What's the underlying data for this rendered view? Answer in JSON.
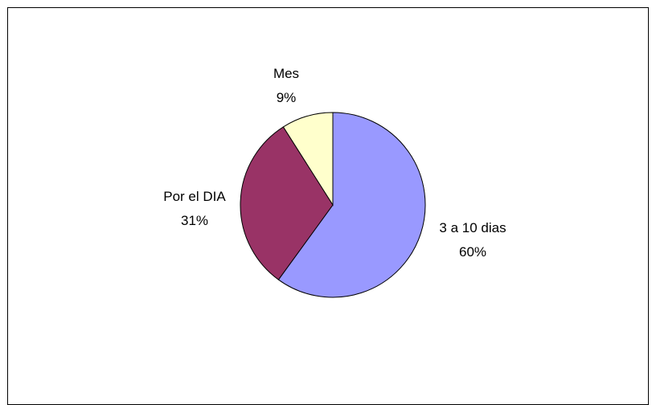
{
  "chart_data": {
    "type": "pie",
    "title": "",
    "slices": [
      {
        "label": "3 a 10 dias",
        "value": 60,
        "percent_label": "60%",
        "color": "#9999FF"
      },
      {
        "label": "Por el DIA",
        "value": 31,
        "percent_label": "31%",
        "color": "#993366"
      },
      {
        "label": "Mes",
        "value": 9,
        "percent_label": "9%",
        "color": "#FFFFCC"
      }
    ],
    "start": "12 o'clock",
    "direction": "clockwise",
    "legend": "none",
    "data_labels": "category name and percent, outside slices"
  }
}
